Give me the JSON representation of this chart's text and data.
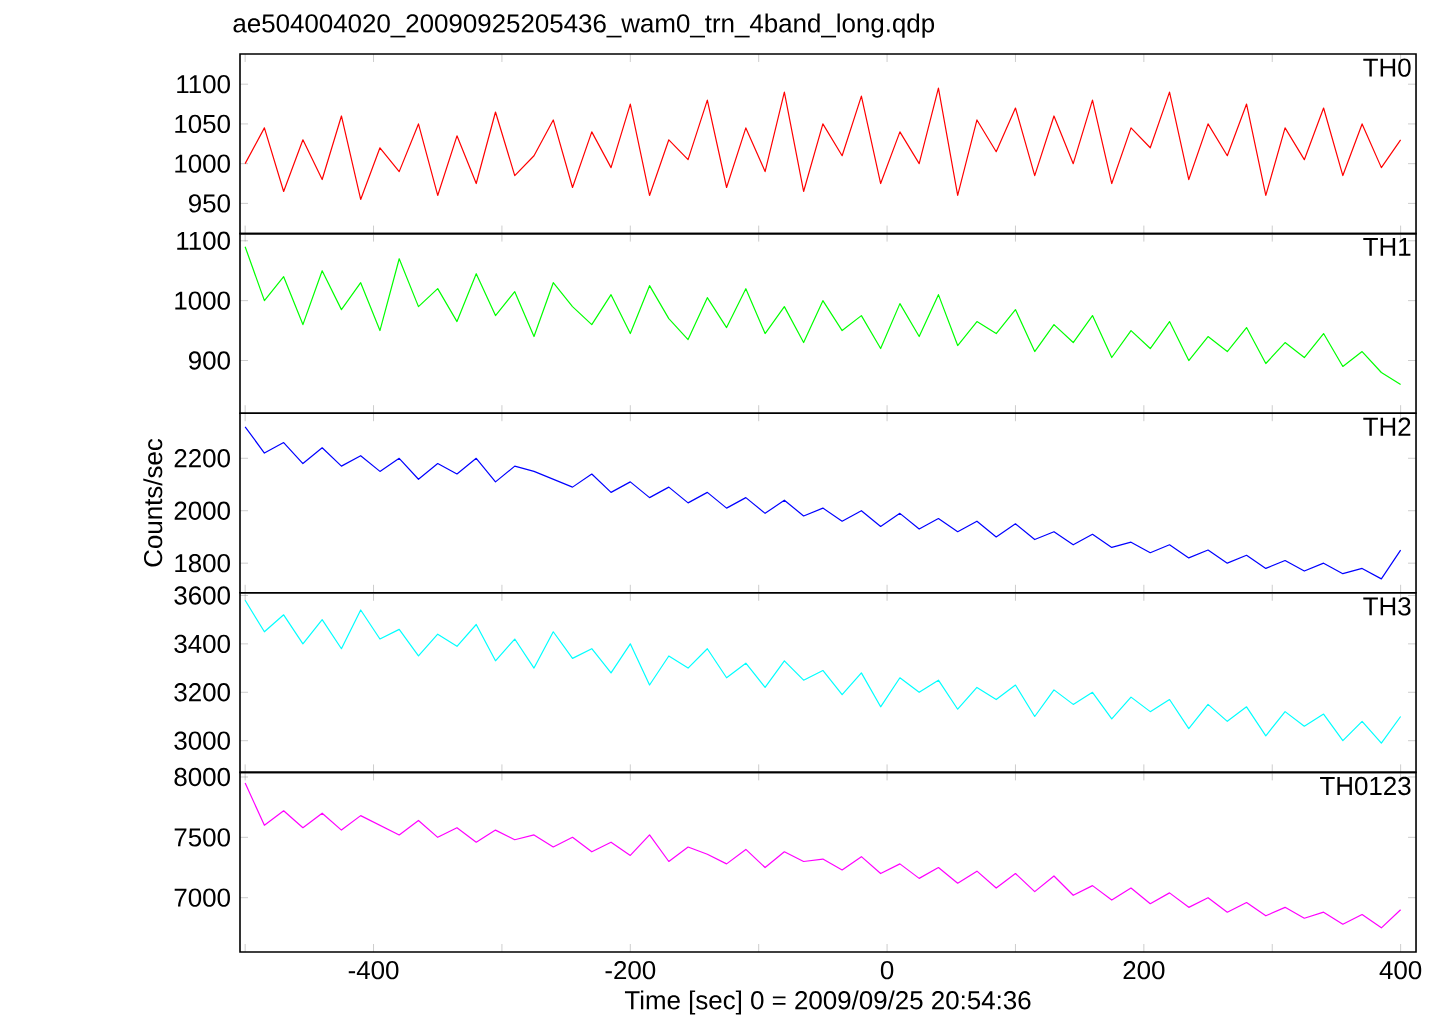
{
  "chart_data": [
    {
      "type": "line",
      "title": "ae504004020_20090925205436_wam0_trn_4band_long.qdp",
      "annotations": [
        "TH0"
      ],
      "color": "#ff0000",
      "tick_labels": "y",
      "xlim": [
        -504,
        412
      ],
      "ylim": [
        912,
        1138
      ],
      "yticks": [
        950,
        1000,
        1050,
        1100
      ],
      "xticks": [
        {
          "value": -500,
          "label": null
        },
        {
          "value": -400,
          "label": null
        },
        {
          "value": -300,
          "label": null
        },
        {
          "value": -200,
          "label": null
        },
        {
          "value": -100,
          "label": null
        },
        {
          "value": 0,
          "label": null
        },
        {
          "value": 100,
          "label": null
        },
        {
          "value": 200,
          "label": null
        },
        {
          "value": 300,
          "label": null
        },
        {
          "value": 400,
          "label": null
        }
      ],
      "x": [
        -500,
        -485,
        -470,
        -455,
        -440,
        -425,
        -410,
        -395,
        -380,
        -365,
        -350,
        -335,
        -320,
        -305,
        -290,
        -275,
        -260,
        -245,
        -230,
        -215,
        -200,
        -185,
        -170,
        -155,
        -140,
        -125,
        -110,
        -95,
        -80,
        -65,
        -50,
        -35,
        -20,
        -5,
        10,
        25,
        40,
        55,
        70,
        85,
        100,
        115,
        130,
        145,
        160,
        175,
        190,
        205,
        220,
        235,
        250,
        265,
        280,
        295,
        310,
        325,
        340,
        355,
        370,
        385,
        400
      ],
      "values": [
        1000,
        1045,
        965,
        1030,
        980,
        1060,
        955,
        1020,
        990,
        1050,
        960,
        1035,
        975,
        1065,
        985,
        1010,
        1055,
        970,
        1040,
        995,
        1075,
        960,
        1030,
        1005,
        1080,
        970,
        1045,
        990,
        1090,
        965,
        1050,
        1010,
        1085,
        975,
        1040,
        1000,
        1095,
        960,
        1055,
        1015,
        1070,
        985,
        1060,
        1000,
        1080,
        975,
        1045,
        1020,
        1090,
        980,
        1050,
        1010,
        1075,
        960,
        1045,
        1005,
        1070,
        985,
        1050,
        995,
        1030
      ]
    },
    {
      "type": "line",
      "annotations": [
        "TH1"
      ],
      "color": "#00ff00",
      "tick_labels": "y",
      "xlim": [
        -504,
        412
      ],
      "ylim": [
        812,
        1112
      ],
      "yticks": [
        900,
        1000,
        1100
      ],
      "xticks": [
        {
          "value": -500,
          "label": null
        },
        {
          "value": -400,
          "label": null
        },
        {
          "value": -300,
          "label": null
        },
        {
          "value": -200,
          "label": null
        },
        {
          "value": -100,
          "label": null
        },
        {
          "value": 0,
          "label": null
        },
        {
          "value": 100,
          "label": null
        },
        {
          "value": 200,
          "label": null
        },
        {
          "value": 300,
          "label": null
        },
        {
          "value": 400,
          "label": null
        }
      ],
      "x": [
        -500,
        -485,
        -470,
        -455,
        -440,
        -425,
        -410,
        -395,
        -380,
        -365,
        -350,
        -335,
        -320,
        -305,
        -290,
        -275,
        -260,
        -245,
        -230,
        -215,
        -200,
        -185,
        -170,
        -155,
        -140,
        -125,
        -110,
        -95,
        -80,
        -65,
        -50,
        -35,
        -20,
        -5,
        10,
        25,
        40,
        55,
        70,
        85,
        100,
        115,
        130,
        145,
        160,
        175,
        190,
        205,
        220,
        235,
        250,
        265,
        280,
        295,
        310,
        325,
        340,
        355,
        370,
        385,
        400
      ],
      "values": [
        1090,
        1000,
        1040,
        960,
        1050,
        985,
        1030,
        950,
        1070,
        990,
        1020,
        965,
        1045,
        975,
        1015,
        940,
        1030,
        990,
        960,
        1010,
        945,
        1025,
        970,
        935,
        1005,
        955,
        1020,
        945,
        990,
        930,
        1000,
        950,
        975,
        920,
        995,
        940,
        1010,
        925,
        965,
        945,
        985,
        915,
        960,
        930,
        975,
        905,
        950,
        920,
        965,
        900,
        940,
        915,
        955,
        895,
        930,
        905,
        945,
        890,
        915,
        880,
        860
      ]
    },
    {
      "type": "line",
      "annotations": [
        "TH2"
      ],
      "ylabel": "Counts/sec",
      "color": "#0000ff",
      "tick_labels": "y",
      "xlim": [
        -504,
        412
      ],
      "ylim": [
        1687,
        2372
      ],
      "yticks": [
        1800,
        2000,
        2200
      ],
      "xticks": [
        {
          "value": -500,
          "label": null
        },
        {
          "value": -400,
          "label": null
        },
        {
          "value": -300,
          "label": null
        },
        {
          "value": -200,
          "label": null
        },
        {
          "value": -100,
          "label": null
        },
        {
          "value": 0,
          "label": null
        },
        {
          "value": 100,
          "label": null
        },
        {
          "value": 200,
          "label": null
        },
        {
          "value": 300,
          "label": null
        },
        {
          "value": 400,
          "label": null
        }
      ],
      "x": [
        -500,
        -485,
        -470,
        -455,
        -440,
        -425,
        -410,
        -395,
        -380,
        -365,
        -350,
        -335,
        -320,
        -305,
        -290,
        -275,
        -260,
        -245,
        -230,
        -215,
        -200,
        -185,
        -170,
        -155,
        -140,
        -125,
        -110,
        -95,
        -80,
        -65,
        -50,
        -35,
        -20,
        -5,
        10,
        25,
        40,
        55,
        70,
        85,
        100,
        115,
        130,
        145,
        160,
        175,
        190,
        205,
        220,
        235,
        250,
        265,
        280,
        295,
        310,
        325,
        340,
        355,
        370,
        385,
        400
      ],
      "values": [
        2320,
        2220,
        2260,
        2180,
        2240,
        2170,
        2210,
        2150,
        2200,
        2120,
        2180,
        2140,
        2200,
        2110,
        2170,
        2150,
        2120,
        2090,
        2140,
        2070,
        2110,
        2050,
        2090,
        2030,
        2070,
        2010,
        2050,
        1990,
        2040,
        1980,
        2010,
        1960,
        2000,
        1940,
        1990,
        1930,
        1970,
        1920,
        1960,
        1900,
        1950,
        1890,
        1920,
        1870,
        1910,
        1860,
        1880,
        1840,
        1870,
        1820,
        1850,
        1800,
        1830,
        1780,
        1810,
        1770,
        1800,
        1760,
        1780,
        1740,
        1850
      ]
    },
    {
      "type": "line",
      "annotations": [
        "TH3"
      ],
      "color": "#00ffff",
      "tick_labels": "y",
      "xlim": [
        -504,
        412
      ],
      "ylim": [
        2869,
        3611
      ],
      "yticks": [
        3000,
        3200,
        3400,
        3600
      ],
      "xticks": [
        {
          "value": -500,
          "label": null
        },
        {
          "value": -400,
          "label": null
        },
        {
          "value": -300,
          "label": null
        },
        {
          "value": -200,
          "label": null
        },
        {
          "value": -100,
          "label": null
        },
        {
          "value": 0,
          "label": null
        },
        {
          "value": 100,
          "label": null
        },
        {
          "value": 200,
          "label": null
        },
        {
          "value": 300,
          "label": null
        },
        {
          "value": 400,
          "label": null
        }
      ],
      "x": [
        -500,
        -485,
        -470,
        -455,
        -440,
        -425,
        -410,
        -395,
        -380,
        -365,
        -350,
        -335,
        -320,
        -305,
        -290,
        -275,
        -260,
        -245,
        -230,
        -215,
        -200,
        -185,
        -170,
        -155,
        -140,
        -125,
        -110,
        -95,
        -80,
        -65,
        -50,
        -35,
        -20,
        -5,
        10,
        25,
        40,
        55,
        70,
        85,
        100,
        115,
        130,
        145,
        160,
        175,
        190,
        205,
        220,
        235,
        250,
        265,
        280,
        295,
        310,
        325,
        340,
        355,
        370,
        385,
        400
      ],
      "values": [
        3580,
        3450,
        3520,
        3400,
        3500,
        3380,
        3540,
        3420,
        3460,
        3350,
        3440,
        3390,
        3480,
        3330,
        3420,
        3300,
        3450,
        3340,
        3380,
        3280,
        3400,
        3230,
        3350,
        3300,
        3380,
        3260,
        3320,
        3220,
        3330,
        3250,
        3290,
        3190,
        3280,
        3140,
        3260,
        3200,
        3250,
        3130,
        3220,
        3170,
        3230,
        3100,
        3210,
        3150,
        3200,
        3090,
        3180,
        3120,
        3170,
        3050,
        3150,
        3080,
        3140,
        3020,
        3120,
        3060,
        3110,
        3000,
        3080,
        2990,
        3100
      ]
    },
    {
      "type": "line",
      "annotations": [
        "TH0123"
      ],
      "xlabel": "Time [sec] 0 = 2009/09/25 20:54:36",
      "color": "#ff00ff",
      "xlim": [
        -504,
        412
      ],
      "ylim": [
        6550,
        8038
      ],
      "yticks": [
        7000,
        7500,
        8000
      ],
      "xticks": [
        {
          "value": -500,
          "label": null
        },
        -400,
        {
          "value": -300,
          "label": null
        },
        -200,
        {
          "value": -100,
          "label": null
        },
        0,
        {
          "value": 100,
          "label": null
        },
        200,
        {
          "value": 300,
          "label": null
        },
        400
      ],
      "x": [
        -500,
        -485,
        -470,
        -455,
        -440,
        -425,
        -410,
        -395,
        -380,
        -365,
        -350,
        -335,
        -320,
        -305,
        -290,
        -275,
        -260,
        -245,
        -230,
        -215,
        -200,
        -185,
        -170,
        -155,
        -140,
        -125,
        -110,
        -95,
        -80,
        -65,
        -50,
        -35,
        -20,
        -5,
        10,
        25,
        40,
        55,
        70,
        85,
        100,
        115,
        130,
        145,
        160,
        175,
        190,
        205,
        220,
        235,
        250,
        265,
        280,
        295,
        310,
        325,
        340,
        355,
        370,
        385,
        400
      ],
      "values": [
        7950,
        7600,
        7720,
        7580,
        7700,
        7560,
        7680,
        7600,
        7520,
        7640,
        7500,
        7580,
        7460,
        7560,
        7480,
        7520,
        7420,
        7500,
        7380,
        7460,
        7350,
        7520,
        7300,
        7420,
        7360,
        7280,
        7400,
        7250,
        7380,
        7300,
        7320,
        7230,
        7340,
        7200,
        7280,
        7160,
        7250,
        7120,
        7220,
        7080,
        7200,
        7050,
        7180,
        7020,
        7100,
        6980,
        7080,
        6950,
        7040,
        6920,
        7000,
        6880,
        6960,
        6850,
        6920,
        6830,
        6880,
        6780,
        6860,
        6750,
        6900
      ]
    }
  ]
}
